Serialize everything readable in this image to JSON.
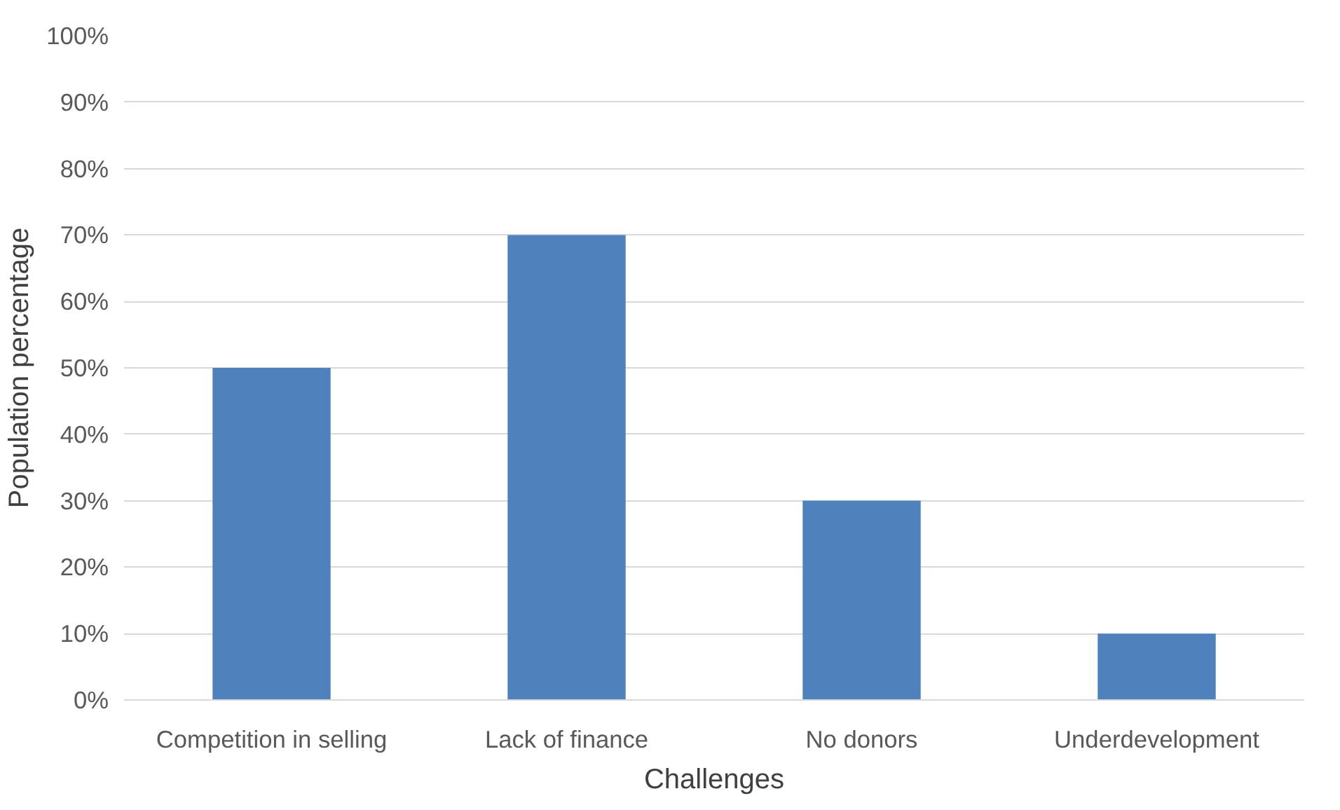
{
  "chart_data": {
    "type": "bar",
    "xlabel": "Challenges",
    "ylabel": "Population percentage",
    "categories": [
      "Competition in selling",
      "Lack of finance",
      "No donors",
      "Underdevelopment"
    ],
    "values": [
      50,
      70,
      30,
      10
    ],
    "color": "#4f81bd",
    "ylim": [
      0,
      100
    ],
    "yticks": [
      {
        "value": 0,
        "label": "0%"
      },
      {
        "value": 10,
        "label": "10%"
      },
      {
        "value": 20,
        "label": "20%"
      },
      {
        "value": 30,
        "label": "30%"
      },
      {
        "value": 40,
        "label": "40%"
      },
      {
        "value": 50,
        "label": "50%"
      },
      {
        "value": 60,
        "label": "60%"
      },
      {
        "value": 70,
        "label": "70%"
      },
      {
        "value": 80,
        "label": "80%"
      },
      {
        "value": 90,
        "label": "90%"
      },
      {
        "value": 100,
        "label": "100%"
      }
    ],
    "grid": "y"
  }
}
